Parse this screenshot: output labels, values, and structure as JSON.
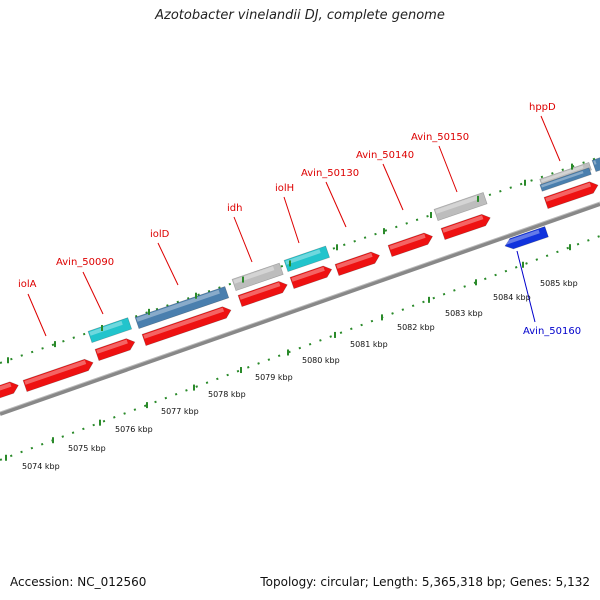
{
  "title": "Azotobacter vinelandii DJ, complete genome",
  "footer": {
    "accession": "Accession: NC_012560",
    "topology": "Topology: circular; Length: 5,365,318 bp; Genes: 5,132"
  },
  "ticks": [
    "5074 kbp",
    "5075 kbp",
    "5076 kbp",
    "5077 kbp",
    "5078 kbp",
    "5079 kbp",
    "5080 kbp",
    "5081 kbp",
    "5082 kbp",
    "5083 kbp",
    "5084 kbp",
    "5085 kbp"
  ],
  "gene_labels": [
    "iolA",
    "Avin_50090",
    "iolD",
    "idh",
    "iolH",
    "Avin_50130",
    "Avin_50140",
    "Avin_50150",
    "hppD",
    "Avin_50160"
  ],
  "colors": {
    "cds_forward": "#ee1111",
    "cds_reverse": "#1133dd",
    "teal": "#22c4cc",
    "steel": "#4a7fae",
    "gray": "#bdbdbd",
    "label_red": "#dd0000",
    "label_blue": "#0000cc",
    "backbone": "#888888",
    "dots": "#2a8a2a"
  }
}
